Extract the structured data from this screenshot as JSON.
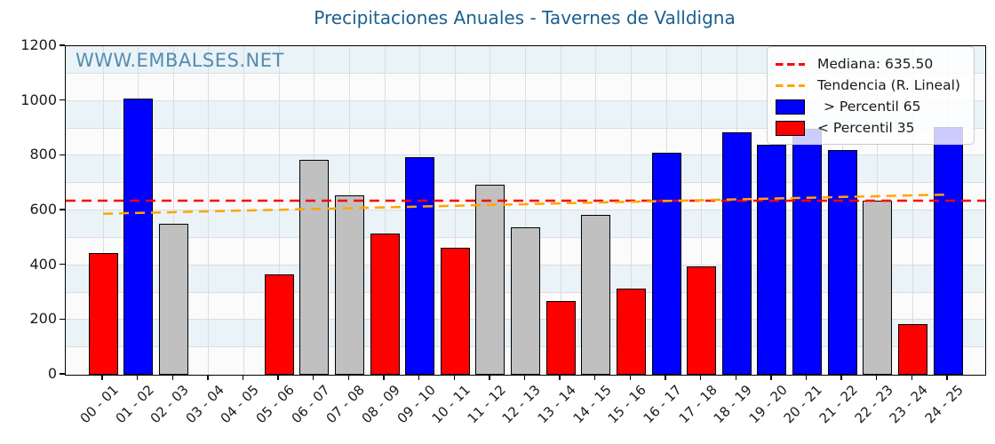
{
  "title": "Precipitaciones Anuales - Tavernes de Valldigna",
  "watermark": "WWW.EMBALSES.NET",
  "legend": {
    "median_label": "Mediana: 635.50",
    "trend_label": "Tendencia (R. Lineal)",
    "p65_label": "> Percentil 65",
    "p35_label": "< Percentil 35"
  },
  "colors": {
    "above_p65": "#0000ff",
    "below_p35": "#ff0000",
    "between": "#c0c0c0",
    "bar_edge": "#000000",
    "median_line": "#ff0000",
    "trend_line": "#ffa500",
    "title_text": "#1a6090",
    "watermark_text": "#4d87ac",
    "stripe_light_blue": "#eaf3f8",
    "stripe_white": "#fbfbfb",
    "grid_line": "#d9dee1"
  },
  "chart_data": {
    "type": "bar",
    "title": "Precipitaciones Anuales - Tavernes de Valldigna",
    "categories": [
      "00 - 01",
      "01 - 02",
      "02 - 03",
      "03 - 04",
      "04 - 05",
      "05 - 06",
      "06 - 07",
      "07 - 08",
      "08 - 09",
      "09 - 10",
      "10 - 11",
      "11 - 12",
      "12 - 13",
      "13 - 14",
      "14 - 15",
      "15 - 16",
      "16 - 17",
      "17 - 18",
      "18 - 19",
      "19 - 20",
      "20 - 21",
      "21 - 22",
      "22 - 23",
      "23 - 24",
      "24 - 25"
    ],
    "values": [
      445,
      1010,
      550,
      0,
      0,
      365,
      785,
      655,
      515,
      795,
      465,
      695,
      540,
      270,
      585,
      315,
      810,
      395,
      885,
      840,
      900,
      820,
      635.5,
      185,
      905
    ],
    "bar_classes": [
      "below_p35",
      "above_p65",
      "between",
      "none",
      "none",
      "below_p35",
      "between",
      "between",
      "below_p35",
      "above_p65",
      "below_p35",
      "between",
      "between",
      "below_p35",
      "between",
      "below_p35",
      "above_p65",
      "below_p35",
      "above_p65",
      "above_p65",
      "above_p65",
      "above_p65",
      "between",
      "below_p35",
      "above_p65"
    ],
    "median": 635.5,
    "trend_linear": {
      "start_value": 588,
      "end_value": 658
    },
    "ylim": [
      0,
      1200
    ],
    "yticks": [
      0,
      200,
      400,
      600,
      800,
      1000,
      1200
    ],
    "xlabel": "",
    "ylabel": "",
    "grid": true,
    "legend_position": "upper-right"
  }
}
